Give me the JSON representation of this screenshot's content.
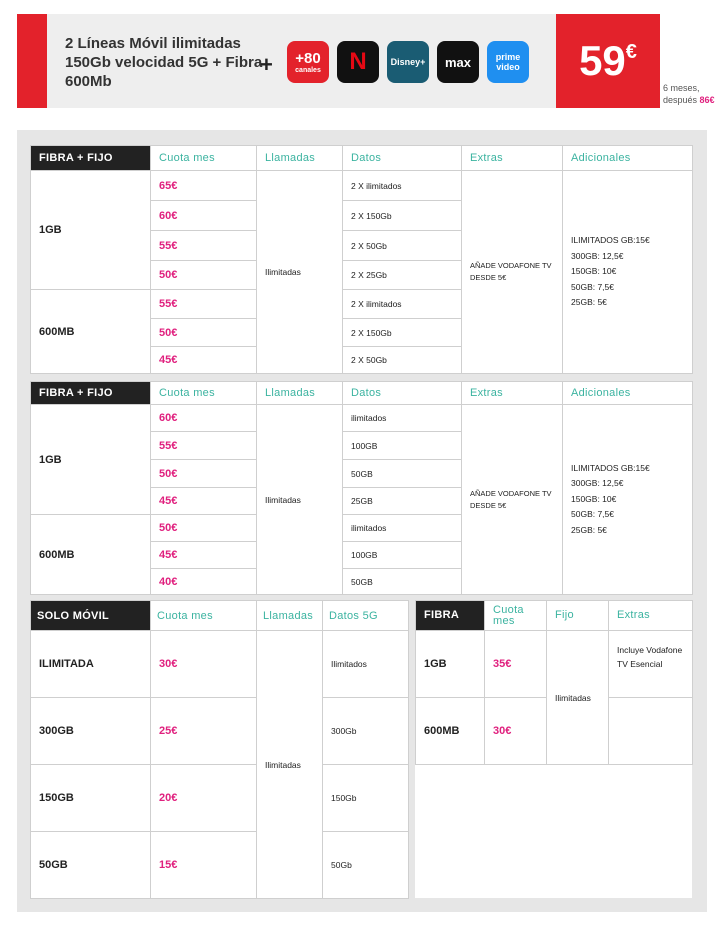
{
  "banner": {
    "title": "2 Líneas Móvil ilimitadas 150Gb velocidad 5G + Fibra 600Mb",
    "plus": "+",
    "logos": [
      {
        "name": "canales",
        "line1": "+80",
        "line2": "canales",
        "color": "#e3222b"
      },
      {
        "name": "netflix",
        "line1": "N",
        "color": "#111111"
      },
      {
        "name": "disney-plus",
        "line1": "Disney+",
        "color": "#1a5c73"
      },
      {
        "name": "max",
        "line1": "max",
        "color": "#111111"
      },
      {
        "name": "prime-video",
        "line1": "prime",
        "line2": "video",
        "color": "#1f8ff0"
      }
    ],
    "price": "59",
    "currency": "€",
    "note1": "6 meses,",
    "note2": "después",
    "note_price": "86€"
  },
  "tables": [
    {
      "head": [
        "FIBRA + FIJO",
        "Cuota mes",
        "Llamadas",
        "Datos",
        "Extras",
        "Adicionales"
      ],
      "groups": [
        {
          "label": "1GB",
          "rows": [
            [
              "65€",
              "2 X ilimitados"
            ],
            [
              "60€",
              "2 X 150Gb"
            ],
            [
              "55€",
              "2 X 50Gb"
            ],
            [
              "50€",
              "2 X 25Gb"
            ]
          ]
        },
        {
          "label": "600MB",
          "rows": [
            [
              "55€",
              "2 X ilimitados"
            ],
            [
              "50€",
              "2 X 150Gb"
            ],
            [
              "45€",
              "2 X 50Gb"
            ]
          ]
        }
      ],
      "llamadas": "Ilimitadas",
      "extras": "AÑADE VODAFONE TV DESDE 5€",
      "adicionales": [
        "ILIMITADOS GB:15€",
        "300GB: 12,5€",
        "150GB: 10€",
        "50GB: 7,5€",
        "25GB: 5€"
      ]
    },
    {
      "head": [
        "FIBRA + FIJO",
        "Cuota mes",
        "Llamadas",
        "Datos",
        "Extras",
        "Adicionales"
      ],
      "groups": [
        {
          "label": "1GB",
          "rows": [
            [
              "60€",
              "ilimitados"
            ],
            [
              "55€",
              "100GB"
            ],
            [
              "50€",
              "50GB"
            ],
            [
              "45€",
              "25GB"
            ]
          ]
        },
        {
          "label": "600MB",
          "rows": [
            [
              "50€",
              "ilimitados"
            ],
            [
              "45€",
              "100GB"
            ],
            [
              "40€",
              "50GB"
            ]
          ]
        }
      ],
      "llamadas": "Ilimitadas",
      "extras": "AÑADE VODAFONE TV DESDE 5€",
      "adicionales": [
        "ILIMITADOS GB:15€",
        "300GB: 12,5€",
        "150GB: 10€",
        "50GB: 7,5€",
        "25GB: 5€"
      ]
    }
  ],
  "movil": {
    "head": [
      "SOLO MÓVIL",
      "Cuota mes",
      "Llamadas",
      "Datos 5G"
    ],
    "llamadas": "Ilimitadas",
    "rows": [
      [
        "ILIMITADA",
        "30€",
        "Ilimitados"
      ],
      [
        "300GB",
        "25€",
        "300Gb"
      ],
      [
        "150GB",
        "20€",
        "150Gb"
      ],
      [
        "50GB",
        "15€",
        "50Gb"
      ]
    ]
  },
  "fibra": {
    "head": [
      "FIBRA",
      "Cuota mes",
      "Fijo",
      "Extras"
    ],
    "fijo": "Ilimitadas",
    "extras": "Incluye Vodafone TV Esencial",
    "rows": [
      [
        "1GB",
        "35€"
      ],
      [
        "600MB",
        "30€"
      ]
    ]
  }
}
